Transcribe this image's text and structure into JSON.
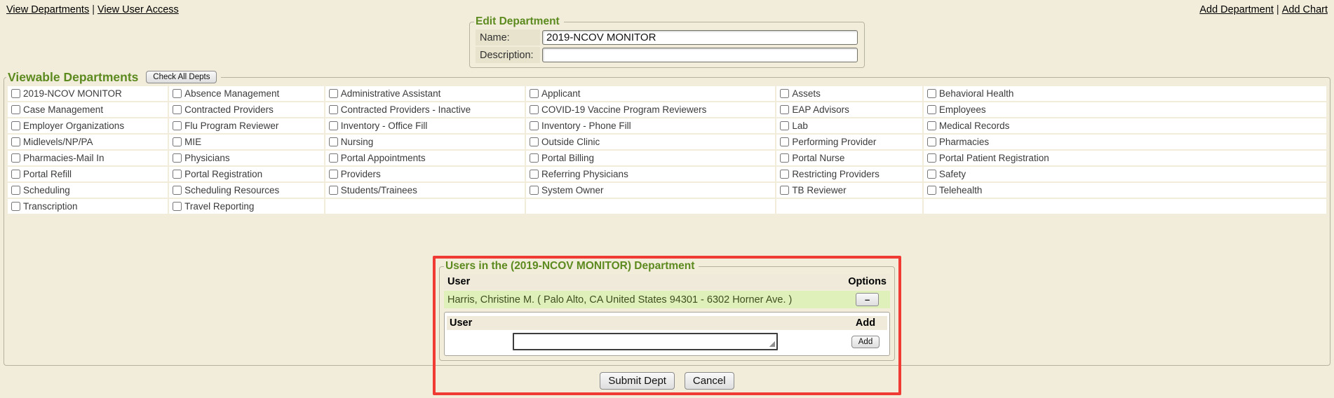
{
  "topbar": {
    "separator": "|",
    "left_links": [
      {
        "label": "View Departments"
      },
      {
        "label": "View User Access"
      }
    ],
    "right_links": [
      {
        "label": "Add Department"
      },
      {
        "label": "Add Chart"
      }
    ]
  },
  "edit_department": {
    "legend": "Edit Department",
    "fields": [
      {
        "label": "Name:",
        "value": "2019-NCOV MONITOR"
      },
      {
        "label": "Description:",
        "value": ""
      }
    ]
  },
  "viewable_departments": {
    "legend": "Viewable Departments",
    "check_all_label": "Check All Depts",
    "rows": [
      [
        "2019-NCOV MONITOR",
        "Absence Management",
        "Administrative Assistant",
        "Applicant",
        "Assets",
        "Behavioral Health"
      ],
      [
        "Case Management",
        "Contracted Providers",
        "Contracted Providers - Inactive",
        "COVID-19 Vaccine Program Reviewers",
        "EAP Advisors",
        "Employees"
      ],
      [
        "Employer Organizations",
        "Flu Program Reviewer",
        "Inventory - Office Fill",
        "Inventory - Phone Fill",
        "Lab",
        "Medical Records"
      ],
      [
        "Midlevels/NP/PA",
        "MIE",
        "Nursing",
        "Outside Clinic",
        "Performing Provider",
        "Pharmacies"
      ],
      [
        "Pharmacies-Mail In",
        "Physicians",
        "Portal Appointments",
        "Portal Billing",
        "Portal Nurse",
        "Portal Patient Registration"
      ],
      [
        "Portal Refill",
        "Portal Registration",
        "Providers",
        "Referring Physicians",
        "Restricting Providers",
        "Safety"
      ],
      [
        "Scheduling",
        "Scheduling Resources",
        "Students/Trainees",
        "System Owner",
        "TB Reviewer",
        "Telehealth"
      ],
      [
        "Transcription",
        "Travel Reporting",
        "",
        "",
        "",
        ""
      ]
    ]
  },
  "users_section": {
    "legend": "Users in the (2019-NCOV MONITOR) Department",
    "header_user": "User",
    "header_options": "Options",
    "member": {
      "name": "Harris, Christine M. ( Palo Alto, CA United States 94301 - 6302 Horner Ave. )",
      "remove_label": "–"
    },
    "add": {
      "header_user": "User",
      "header_add": "Add",
      "input_value": "",
      "button_label": "Add"
    }
  },
  "actions": {
    "submit_label": "Submit Dept",
    "cancel_label": "Cancel"
  },
  "colors": {
    "page_bg": "#f2edda",
    "accent_green": "#5c8a1f",
    "member_row_green": "#dff0ba",
    "header_row_bg": "#efead9",
    "label_bg": "#e8e3cd",
    "highlight_red": "#ef3b33"
  }
}
